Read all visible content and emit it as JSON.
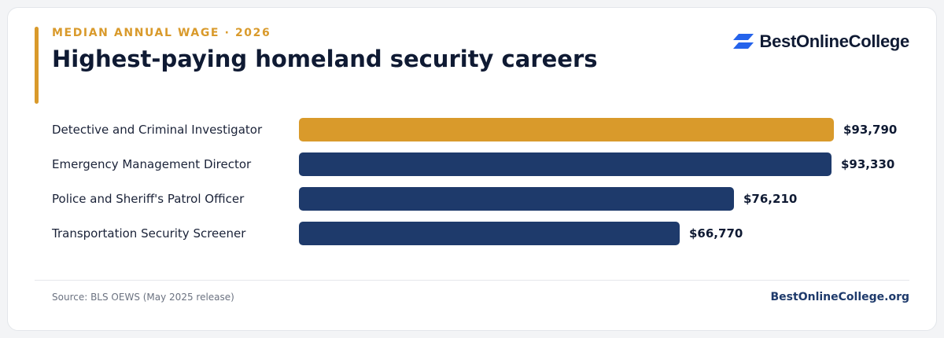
{
  "header": {
    "eyebrow": "MEDIAN ANNUAL WAGE · 2026",
    "title": "Highest-paying homeland security careers"
  },
  "brand": {
    "name": "BestOnlineCollege",
    "icon": "stacked-parallelogram-logo-icon",
    "icon_color": "#2563eb"
  },
  "colors": {
    "highlight": "#d99a2b",
    "series": "#1e3a6b"
  },
  "chart_data": {
    "type": "bar",
    "orientation": "horizontal",
    "title": "Highest-paying homeland security careers",
    "categories": [
      "Detective and Criminal Investigator",
      "Emergency Management Director",
      "Police and Sheriff's Patrol Officer",
      "Transportation Security Screener"
    ],
    "values": [
      93790,
      93330,
      76210,
      66770
    ],
    "value_labels": [
      "$93,790",
      "$93,330",
      "$76,210",
      "$66,770"
    ],
    "highlighted_index": 0,
    "xlim": [
      0,
      93790
    ],
    "grid": false,
    "legend": "none"
  },
  "footer": {
    "source": "Source: BLS OEWS (May 2025 release)",
    "site": "BestOnlineCollege.org"
  }
}
